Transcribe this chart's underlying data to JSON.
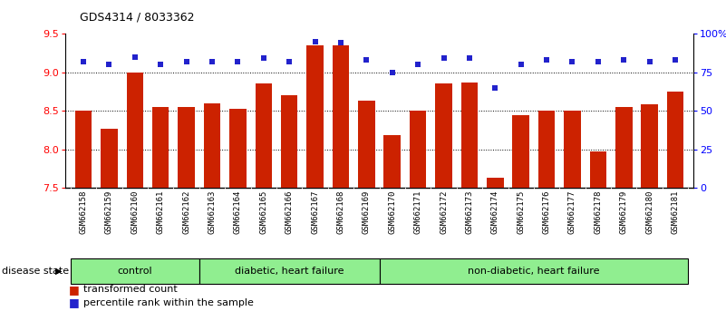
{
  "title": "GDS4314 / 8033362",
  "samples": [
    "GSM662158",
    "GSM662159",
    "GSM662160",
    "GSM662161",
    "GSM662162",
    "GSM662163",
    "GSM662164",
    "GSM662165",
    "GSM662166",
    "GSM662167",
    "GSM662168",
    "GSM662169",
    "GSM662170",
    "GSM662171",
    "GSM662172",
    "GSM662173",
    "GSM662174",
    "GSM662175",
    "GSM662176",
    "GSM662177",
    "GSM662178",
    "GSM662179",
    "GSM662180",
    "GSM662181"
  ],
  "bar_values": [
    8.5,
    8.27,
    9.0,
    8.55,
    8.55,
    8.6,
    8.53,
    8.85,
    8.7,
    9.35,
    9.35,
    8.63,
    8.18,
    8.5,
    8.85,
    8.87,
    7.63,
    8.44,
    8.5,
    8.5,
    7.97,
    8.55,
    8.58,
    8.75
  ],
  "percentile_values": [
    82,
    80,
    85,
    80,
    82,
    82,
    82,
    84,
    82,
    95,
    94,
    83,
    75,
    80,
    84,
    84,
    65,
    80,
    83,
    82,
    82,
    83,
    82,
    83
  ],
  "group_labels": [
    "control",
    "diabetic, heart failure",
    "non-diabetic, heart failure"
  ],
  "group_starts": [
    0,
    5,
    12
  ],
  "group_ends": [
    5,
    12,
    24
  ],
  "group_colors": [
    "#90ee90",
    "#90ee90",
    "#90ee90"
  ],
  "group_edge_colors": [
    "#50cc50",
    "#50cc50",
    "#50cc50"
  ],
  "ylim_left": [
    7.5,
    9.5
  ],
  "ylim_right": [
    0,
    100
  ],
  "yticks_left": [
    7.5,
    8.0,
    8.5,
    9.0,
    9.5
  ],
  "yticks_right": [
    0,
    25,
    50,
    75,
    100
  ],
  "ytick_labels_right": [
    "0",
    "25",
    "50",
    "75",
    "100%"
  ],
  "bar_color": "#cc2200",
  "dot_color": "#2222cc",
  "grid_values": [
    8.0,
    8.5,
    9.0
  ],
  "legend_bar_label": "transformed count",
  "legend_dot_label": "percentile rank within the sample",
  "disease_state_label": "disease state",
  "xlabels_bg": "#c8c8c8",
  "bar_bottom": 7.5
}
